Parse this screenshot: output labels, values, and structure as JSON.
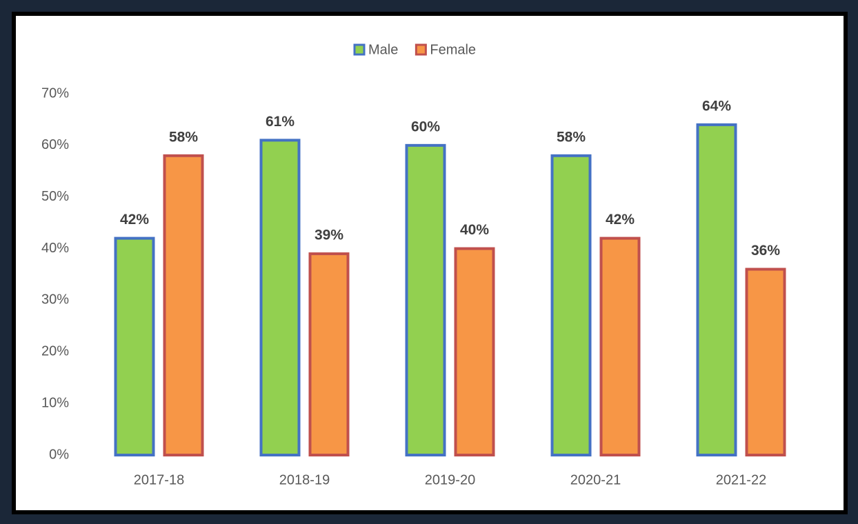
{
  "chart_data": {
    "type": "bar",
    "categories": [
      "2017-18",
      "2018-19",
      "2019-20",
      "2020-21",
      "2021-22"
    ],
    "series": [
      {
        "name": "Male",
        "color": "#92d050",
        "edgecolor": "#4472c4",
        "values": [
          42,
          61,
          60,
          58,
          64
        ],
        "value_labels": [
          "42%",
          "61%",
          "60%",
          "58%",
          "64%"
        ]
      },
      {
        "name": "Female",
        "color": "#f79646",
        "edgecolor": "#c0504d",
        "values": [
          58,
          39,
          40,
          42,
          36
        ],
        "value_labels": [
          "58%",
          "39%",
          "40%",
          "42%",
          "36%"
        ]
      }
    ],
    "ylim": [
      0,
      70
    ],
    "yticks": [
      {
        "value": 0,
        "label": "0%"
      },
      {
        "value": 10,
        "label": "10%"
      },
      {
        "value": 20,
        "label": "20%"
      },
      {
        "value": 30,
        "label": "30%"
      },
      {
        "value": 40,
        "label": "40%"
      },
      {
        "value": 50,
        "label": "50%"
      },
      {
        "value": 60,
        "label": "60%"
      },
      {
        "value": 70,
        "label": "70%"
      }
    ],
    "grid": false,
    "legend": "top"
  }
}
